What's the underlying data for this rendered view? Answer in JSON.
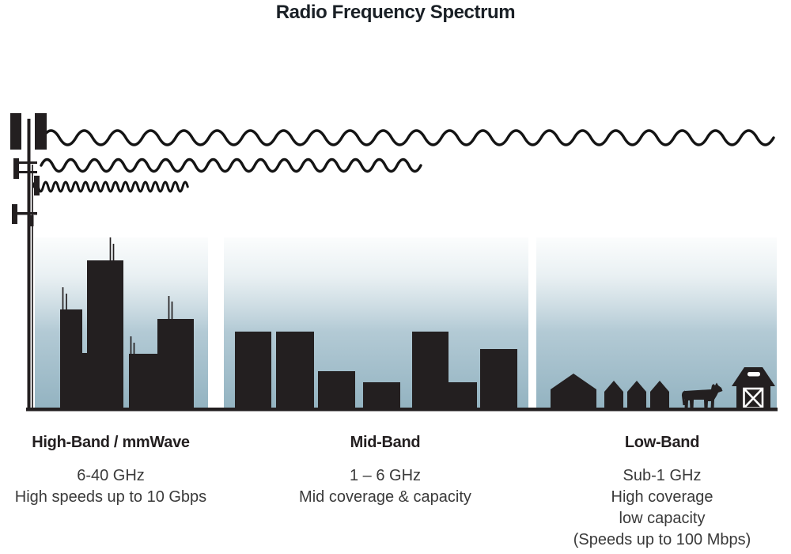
{
  "title": "Radio Frequency Spectrum",
  "colors": {
    "ink": "#231f20",
    "title_ink": "#1a2026",
    "text_gray": "#3a3a3a",
    "wave_black": "#141414",
    "sky_light": "#e6eef1",
    "sky_mid": "#b3cad5",
    "sky_deep": "#93b3c1"
  },
  "icons": {
    "tower": "cell-tower-icon",
    "waves": [
      "low-frequency-wave-icon",
      "mid-frequency-wave-icon",
      "high-frequency-wave-icon"
    ],
    "high_band_scene": "city-skyline-icon",
    "mid_band_scene": "midrise-buildings-icon",
    "low_band_scene": [
      "houses-icon",
      "cow-icon",
      "barn-icon"
    ]
  },
  "bands": [
    {
      "heading": "High-Band / mmWave",
      "lines": [
        "6-40 GHz",
        "High speeds up to 10 Gbps"
      ]
    },
    {
      "heading": "Mid-Band",
      "lines": [
        "1 – 6 GHz",
        "Mid coverage & capacity"
      ]
    },
    {
      "heading": "Low-Band",
      "lines": [
        "Sub-1 GHz",
        "High coverage",
        "low capacity",
        "(Speeds up to 100 Mbps)"
      ]
    }
  ]
}
